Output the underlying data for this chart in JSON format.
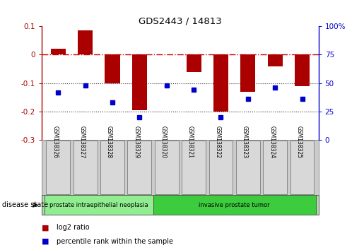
{
  "title": "GDS2443 / 14813",
  "samples": [
    "GSM138326",
    "GSM138327",
    "GSM138328",
    "GSM138329",
    "GSM138320",
    "GSM138321",
    "GSM138322",
    "GSM138323",
    "GSM138324",
    "GSM138325"
  ],
  "log2_ratio": [
    0.022,
    0.085,
    -0.1,
    -0.195,
    0.002,
    -0.06,
    -0.2,
    -0.13,
    -0.04,
    -0.11
  ],
  "percentile_rank_pct": [
    42,
    48,
    33,
    20,
    48,
    44,
    20,
    36,
    46,
    36
  ],
  "disease_groups": [
    {
      "label": "prostate intraepithelial neoplasia",
      "start": 0,
      "end": 4,
      "color": "#90ee90"
    },
    {
      "label": "invasive prostate tumor",
      "start": 4,
      "end": 10,
      "color": "#3dcc3d"
    }
  ],
  "ylim_left": [
    -0.3,
    0.1
  ],
  "ylim_right": [
    0,
    100
  ],
  "yticks_left": [
    -0.3,
    -0.2,
    -0.1,
    0.0,
    0.1
  ],
  "yticks_right": [
    0,
    25,
    50,
    75,
    100
  ],
  "bar_color": "#aa0000",
  "dot_color": "#0000cc",
  "hline_color": "#cc0000",
  "dotted_line_color": "#333333",
  "bg_color": "#ffffff",
  "plot_bg": "#ffffff",
  "legend_bar_label": "log2 ratio",
  "legend_dot_label": "percentile rank within the sample",
  "disease_state_label": "disease state"
}
